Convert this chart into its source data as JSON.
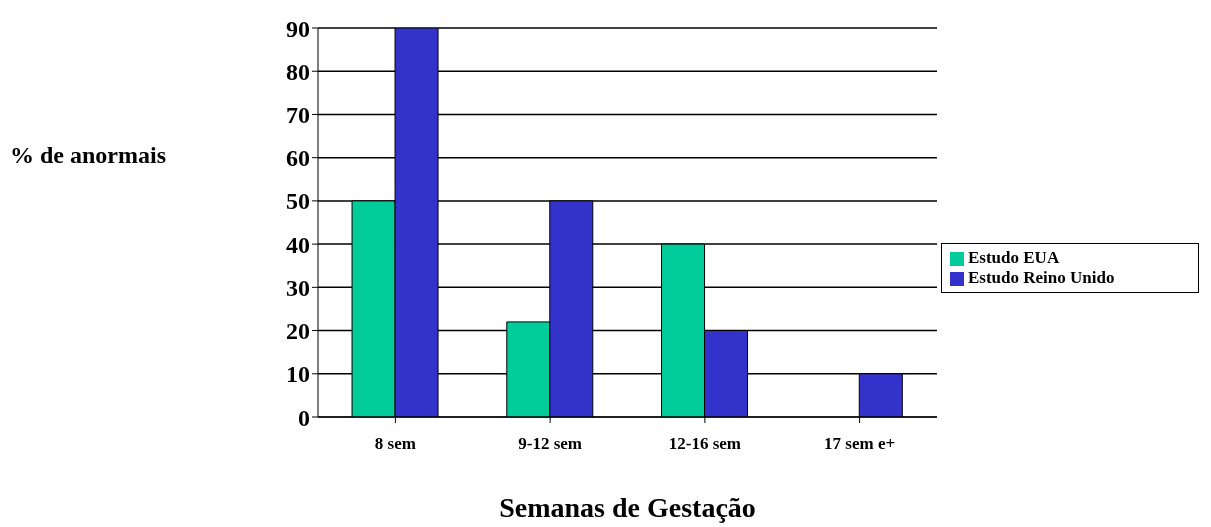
{
  "chart_data": {
    "type": "bar",
    "xlabel": "Semanas de Gestação",
    "ylabel": "% de anormais",
    "categories": [
      "8 sem",
      "9-12 sem",
      "12-16 sem",
      "17 sem e+"
    ],
    "series": [
      {
        "name": "Estudo EUA",
        "color": "#00cc99",
        "values": [
          50,
          22,
          40,
          null
        ]
      },
      {
        "name": "Estudo Reino Unido",
        "color": "#3333cc",
        "values": [
          90,
          50,
          20,
          10
        ]
      }
    ],
    "ylim": [
      0,
      90
    ],
    "yticks": [
      0,
      10,
      20,
      30,
      40,
      50,
      60,
      70,
      80,
      90
    ],
    "grid": "y",
    "legend": "right"
  }
}
